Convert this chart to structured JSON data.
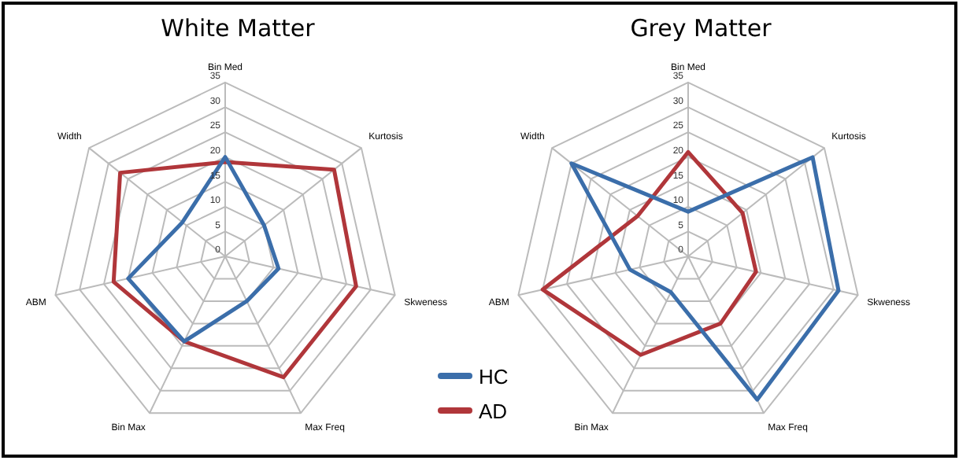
{
  "chart_data": [
    {
      "type": "radar",
      "title": "White Matter",
      "categories": [
        "Bin Med",
        "Kurtosis",
        "Skweness",
        "Max Freq",
        "Bin Max",
        "ABM",
        "Width"
      ],
      "ylim": [
        0,
        35
      ],
      "yticks": [
        0,
        5,
        10,
        15,
        20,
        25,
        30,
        35
      ],
      "grid": true,
      "marker": "none",
      "legend": "bottom right",
      "series": [
        {
          "name": "HC",
          "color": "#3b6eaa",
          "values": [
            20,
            10,
            11,
            10,
            19,
            20,
            11
          ]
        },
        {
          "name": "AD",
          "color": "#b0363a",
          "values": [
            19,
            28,
            27,
            27,
            19,
            23,
            27
          ]
        }
      ]
    },
    {
      "type": "radar",
      "title": "Grey Matter",
      "categories": [
        "Bin Med",
        "Kurtosis",
        "Skweness",
        "Max Freq",
        "Bin Max",
        "ABM",
        "Width"
      ],
      "ylim": [
        0,
        35
      ],
      "yticks": [
        0,
        5,
        10,
        15,
        20,
        25,
        30,
        35
      ],
      "grid": true,
      "marker": "none",
      "series": [
        {
          "name": "HC",
          "color": "#3b6eaa",
          "values": [
            9,
            32,
            31,
            32,
            8,
            12,
            30
          ]
        },
        {
          "name": "AD",
          "color": "#b0363a",
          "values": [
            21,
            14,
            14,
            15,
            22,
            30,
            13
          ]
        }
      ]
    }
  ]
}
